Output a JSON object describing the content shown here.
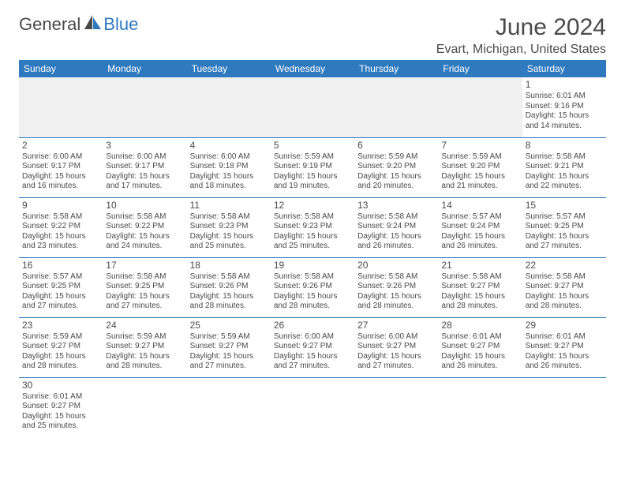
{
  "logo": {
    "general": "General",
    "blue": "Blue"
  },
  "title": "June 2024",
  "location": "Evart, Michigan, United States",
  "colors": {
    "header_bg": "#2f7abf",
    "header_text": "#ffffff",
    "border": "#2f7abf",
    "text": "#4a4a4a",
    "blank_bg": "#f0f0f0",
    "background": "#ffffff"
  },
  "fonts": {
    "title_size": 30,
    "location_size": 16,
    "day_header_size": 12,
    "daynum_size": 12,
    "cell_size": 10
  },
  "day_headers": [
    "Sunday",
    "Monday",
    "Tuesday",
    "Wednesday",
    "Thursday",
    "Friday",
    "Saturday"
  ],
  "layout": {
    "columns": 7,
    "rows": 6,
    "blank_leading": 6
  },
  "days": [
    {
      "n": 1,
      "sunrise": "6:01 AM",
      "sunset": "9:16 PM",
      "daylight": "15 hours and 14 minutes."
    },
    {
      "n": 2,
      "sunrise": "6:00 AM",
      "sunset": "9:17 PM",
      "daylight": "15 hours and 16 minutes."
    },
    {
      "n": 3,
      "sunrise": "6:00 AM",
      "sunset": "9:17 PM",
      "daylight": "15 hours and 17 minutes."
    },
    {
      "n": 4,
      "sunrise": "6:00 AM",
      "sunset": "9:18 PM",
      "daylight": "15 hours and 18 minutes."
    },
    {
      "n": 5,
      "sunrise": "5:59 AM",
      "sunset": "9:19 PM",
      "daylight": "15 hours and 19 minutes."
    },
    {
      "n": 6,
      "sunrise": "5:59 AM",
      "sunset": "9:20 PM",
      "daylight": "15 hours and 20 minutes."
    },
    {
      "n": 7,
      "sunrise": "5:59 AM",
      "sunset": "9:20 PM",
      "daylight": "15 hours and 21 minutes."
    },
    {
      "n": 8,
      "sunrise": "5:58 AM",
      "sunset": "9:21 PM",
      "daylight": "15 hours and 22 minutes."
    },
    {
      "n": 9,
      "sunrise": "5:58 AM",
      "sunset": "9:22 PM",
      "daylight": "15 hours and 23 minutes."
    },
    {
      "n": 10,
      "sunrise": "5:58 AM",
      "sunset": "9:22 PM",
      "daylight": "15 hours and 24 minutes."
    },
    {
      "n": 11,
      "sunrise": "5:58 AM",
      "sunset": "9:23 PM",
      "daylight": "15 hours and 25 minutes."
    },
    {
      "n": 12,
      "sunrise": "5:58 AM",
      "sunset": "9:23 PM",
      "daylight": "15 hours and 25 minutes."
    },
    {
      "n": 13,
      "sunrise": "5:58 AM",
      "sunset": "9:24 PM",
      "daylight": "15 hours and 26 minutes."
    },
    {
      "n": 14,
      "sunrise": "5:57 AM",
      "sunset": "9:24 PM",
      "daylight": "15 hours and 26 minutes."
    },
    {
      "n": 15,
      "sunrise": "5:57 AM",
      "sunset": "9:25 PM",
      "daylight": "15 hours and 27 minutes."
    },
    {
      "n": 16,
      "sunrise": "5:57 AM",
      "sunset": "9:25 PM",
      "daylight": "15 hours and 27 minutes."
    },
    {
      "n": 17,
      "sunrise": "5:58 AM",
      "sunset": "9:25 PM",
      "daylight": "15 hours and 27 minutes."
    },
    {
      "n": 18,
      "sunrise": "5:58 AM",
      "sunset": "9:26 PM",
      "daylight": "15 hours and 28 minutes."
    },
    {
      "n": 19,
      "sunrise": "5:58 AM",
      "sunset": "9:26 PM",
      "daylight": "15 hours and 28 minutes."
    },
    {
      "n": 20,
      "sunrise": "5:58 AM",
      "sunset": "9:26 PM",
      "daylight": "15 hours and 28 minutes."
    },
    {
      "n": 21,
      "sunrise": "5:58 AM",
      "sunset": "9:27 PM",
      "daylight": "15 hours and 28 minutes."
    },
    {
      "n": 22,
      "sunrise": "5:58 AM",
      "sunset": "9:27 PM",
      "daylight": "15 hours and 28 minutes."
    },
    {
      "n": 23,
      "sunrise": "5:59 AM",
      "sunset": "9:27 PM",
      "daylight": "15 hours and 28 minutes."
    },
    {
      "n": 24,
      "sunrise": "5:59 AM",
      "sunset": "9:27 PM",
      "daylight": "15 hours and 28 minutes."
    },
    {
      "n": 25,
      "sunrise": "5:59 AM",
      "sunset": "9:27 PM",
      "daylight": "15 hours and 27 minutes."
    },
    {
      "n": 26,
      "sunrise": "6:00 AM",
      "sunset": "9:27 PM",
      "daylight": "15 hours and 27 minutes."
    },
    {
      "n": 27,
      "sunrise": "6:00 AM",
      "sunset": "9:27 PM",
      "daylight": "15 hours and 27 minutes."
    },
    {
      "n": 28,
      "sunrise": "6:01 AM",
      "sunset": "9:27 PM",
      "daylight": "15 hours and 26 minutes."
    },
    {
      "n": 29,
      "sunrise": "6:01 AM",
      "sunset": "9:27 PM",
      "daylight": "15 hours and 26 minutes."
    },
    {
      "n": 30,
      "sunrise": "6:01 AM",
      "sunset": "9:27 PM",
      "daylight": "15 hours and 25 minutes."
    }
  ],
  "labels": {
    "sunrise": "Sunrise: ",
    "sunset": "Sunset: ",
    "daylight": "Daylight: "
  }
}
